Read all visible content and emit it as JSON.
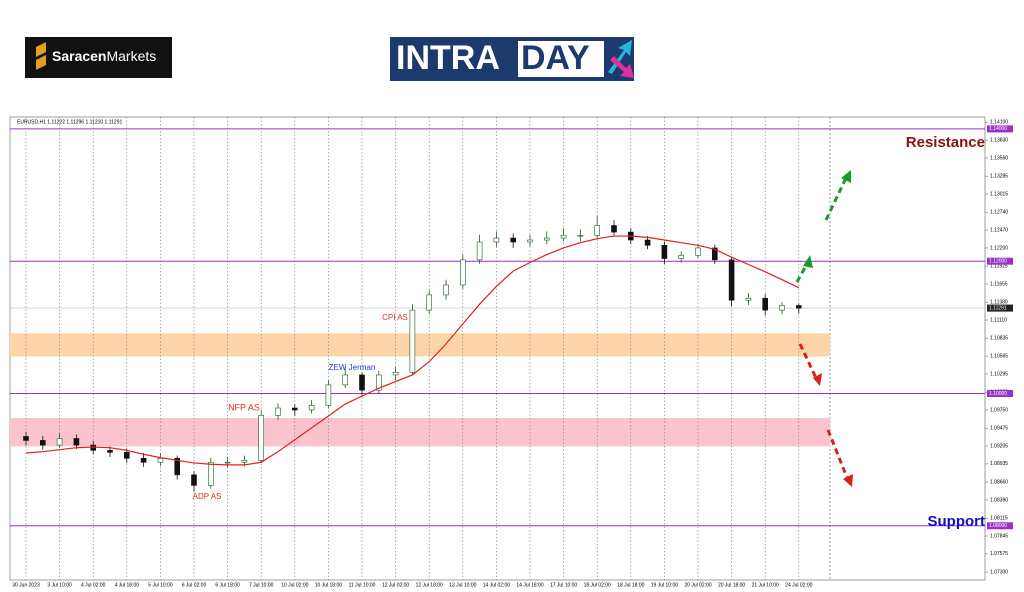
{
  "brand": {
    "broker_name": "Saracen",
    "broker_suffix": "Markets",
    "logo_left": "INTRA",
    "logo_right": "DAY"
  },
  "chart_data": {
    "type": "candlestick",
    "header": "EURUSD,H1  1.11222 1.11296 1.11210 1.11291",
    "categories": [
      "30 Jun 2023",
      null,
      "3 Jul 10:00",
      null,
      "4 Jul 02:00",
      null,
      "4 Jul 18:00",
      null,
      "5 Jul 10:00",
      null,
      "6 Jul 02:00",
      null,
      "6 Jul 18:00",
      null,
      "7 Jul 10:00",
      null,
      "10 Jul 02:00",
      null,
      "10 Jul 18:00",
      null,
      "11 Jul 10:00",
      null,
      "12 Jul 02:00",
      null,
      "12 Jul 18:00",
      null,
      "13 Jul 10:00",
      null,
      "14 Jul 02:00",
      null,
      "14 Jul 18:00",
      null,
      "17 Jul 10:00",
      null,
      "18 Jul 02:00",
      null,
      "18 Jul 18:00",
      null,
      "19 Jul 10:00",
      null,
      "20 Jul 02:00",
      null,
      "20 Jul 18:00",
      null,
      "21 Jul 10:00",
      null,
      "24 Jul 02:00"
    ],
    "open": [
      1.0935,
      1.0929,
      1.0922,
      1.0932,
      1.0922,
      1.0914,
      1.0911,
      1.0902,
      1.0896,
      1.0902,
      1.0877,
      1.0861,
      1.0896,
      1.0896,
      1.0899,
      1.0967,
      1.0978,
      1.0975,
      1.0982,
      1.1013,
      1.1028,
      1.1005,
      1.1028,
      1.1032,
      1.1126,
      1.1149,
      1.1164,
      1.1202,
      1.1229,
      1.1235,
      1.1229,
      1.1232,
      1.1235,
      1.1239,
      1.1239,
      1.1254,
      1.1244,
      1.1232,
      1.1224,
      1.1204,
      1.1209,
      1.122,
      1.1202,
      1.1141,
      1.1144,
      1.1126,
      1.1133
    ],
    "high": [
      1.0942,
      1.0936,
      1.094,
      1.0938,
      1.0928,
      1.092,
      1.0917,
      1.091,
      1.091,
      1.0906,
      1.0882,
      1.0903,
      1.0904,
      1.0906,
      1.0975,
      1.0985,
      1.0984,
      1.099,
      1.102,
      1.104,
      1.1032,
      1.1034,
      1.104,
      1.1135,
      1.1156,
      1.1172,
      1.121,
      1.124,
      1.1245,
      1.1242,
      1.124,
      1.1245,
      1.125,
      1.1248,
      1.1268,
      1.1262,
      1.125,
      1.1238,
      1.123,
      1.1215,
      1.1226,
      1.1225,
      1.1206,
      1.1152,
      1.115,
      1.1138,
      1.1136
    ],
    "low": [
      1.0922,
      1.0915,
      1.0918,
      1.0916,
      1.0908,
      1.0904,
      1.0895,
      1.0889,
      1.089,
      1.087,
      1.0852,
      1.0856,
      1.0888,
      1.089,
      1.0895,
      1.096,
      1.0966,
      1.097,
      1.0978,
      1.1008,
      1.0995,
      1.1,
      1.102,
      1.1028,
      1.112,
      1.1142,
      1.1158,
      1.1196,
      1.1222,
      1.122,
      1.1222,
      1.1226,
      1.123,
      1.123,
      1.1235,
      1.1238,
      1.1226,
      1.1218,
      1.1196,
      1.1198,
      1.1204,
      1.1196,
      1.1132,
      1.1134,
      1.1118,
      1.112,
      1.1121
    ],
    "close": [
      1.0929,
      1.0922,
      1.0932,
      1.0922,
      1.0914,
      1.0911,
      1.0902,
      1.0896,
      1.0902,
      1.0877,
      1.0861,
      1.0896,
      1.0896,
      1.0899,
      1.0967,
      1.0978,
      1.0975,
      1.0982,
      1.1013,
      1.1028,
      1.1005,
      1.1028,
      1.1032,
      1.1126,
      1.1149,
      1.1164,
      1.1202,
      1.1229,
      1.1235,
      1.1229,
      1.1232,
      1.1235,
      1.1239,
      1.1239,
      1.1254,
      1.1244,
      1.1232,
      1.1224,
      1.1204,
      1.1209,
      1.122,
      1.1202,
      1.1141,
      1.1144,
      1.1126,
      1.1133,
      1.1129
    ],
    "up_color": "#1b5e20",
    "down_color": "#111111",
    "ma": {
      "color": "#e02020",
      "values": [
        1.091,
        1.0912,
        1.0915,
        1.0918,
        1.0919,
        1.0918,
        1.0914,
        1.0908,
        1.0903,
        1.0899,
        1.0895,
        1.0893,
        1.0892,
        1.0892,
        1.0896,
        1.0912,
        1.093,
        1.0948,
        1.0966,
        1.0984,
        1.0996,
        1.1008,
        1.1018,
        1.1028,
        1.1048,
        1.1075,
        1.1105,
        1.1135,
        1.1162,
        1.1185,
        1.1198,
        1.121,
        1.122,
        1.1228,
        1.1234,
        1.1238,
        1.1238,
        1.1236,
        1.1232,
        1.1228,
        1.1224,
        1.1218,
        1.1206,
        1.1195,
        1.1184,
        1.1172,
        1.116
      ]
    },
    "ylim": [
      1.0718,
      1.1418
    ],
    "yticks": [
      {
        "value": 1.141,
        "label": "1.14100"
      },
      {
        "value": 1.1383,
        "label": "1.13830"
      },
      {
        "value": 1.1356,
        "label": "1.13560"
      },
      1.13285,
      {
        "value": 1.13015,
        "label": "1.13015"
      },
      {
        "value": 1.1274,
        "label": "1.12740"
      },
      {
        "value": 1.1247,
        "label": "1.12470"
      },
      {
        "value": 1.122,
        "label": "1.12200"
      },
      1.11925,
      1.11655,
      {
        "value": 1.1138,
        "label": "1.11380"
      },
      {
        "value": 1.1111,
        "label": "1.11110"
      },
      1.10835,
      1.10565,
      1.10295,
      {
        "value": 1.1002,
        "label": "1.10020"
      },
      {
        "value": 1.0975,
        "label": "1.09750"
      },
      1.09475,
      1.09205,
      1.08935,
      {
        "value": 1.0866,
        "label": "1.08660"
      },
      {
        "value": 1.0839,
        "label": "1.08390"
      },
      1.08115,
      1.07845,
      1.07575,
      {
        "value": 1.073,
        "label": "1.07300"
      }
    ],
    "grid": true,
    "levels": [
      {
        "value": 1.14,
        "label": "1.14000"
      },
      {
        "value": 1.12,
        "label": "1.12000"
      },
      {
        "value": 1.1,
        "label": "1.10000"
      },
      {
        "value": 1.08,
        "label": "1.08000"
      }
    ],
    "level_color": "#9b30c8",
    "last_price": 1.11291,
    "zones": [
      {
        "from": 1.1056,
        "to": 1.1091,
        "color": "#fdd5a8"
      },
      {
        "from": 1.092,
        "to": 1.0963,
        "color": "#fbc4cc"
      }
    ],
    "annotations": [
      "CPI AS",
      "ZEW Jerman",
      "NFP AS",
      "ADP AS"
    ],
    "resistance": "Resistance",
    "support": "Support"
  }
}
